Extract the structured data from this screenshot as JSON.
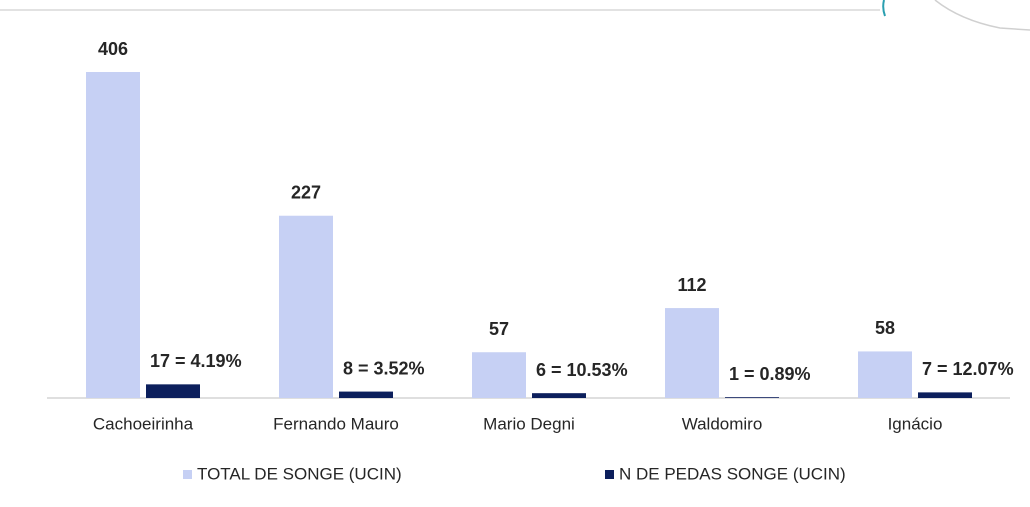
{
  "chart_data": {
    "type": "bar",
    "categories": [
      "Cachoeirinha",
      "Fernando Mauro",
      "Mario Degni",
      "Waldomiro",
      "Ignácio"
    ],
    "series": [
      {
        "name": "TOTAL DE SONGE (UCIN)",
        "color": "#c6d0f4",
        "values": [
          406,
          227,
          57,
          112,
          58
        ]
      },
      {
        "name": "N DE PEDAS SONGE (UCIN)",
        "color": "#0c1f5c",
        "values": [
          17,
          8,
          6,
          1,
          7
        ],
        "value_labels": [
          "17 = 4.19%",
          "8 = 3.52%",
          "6 = 10.53%",
          "1 = 0.89%",
          "7 = 12.07%"
        ]
      }
    ]
  }
}
